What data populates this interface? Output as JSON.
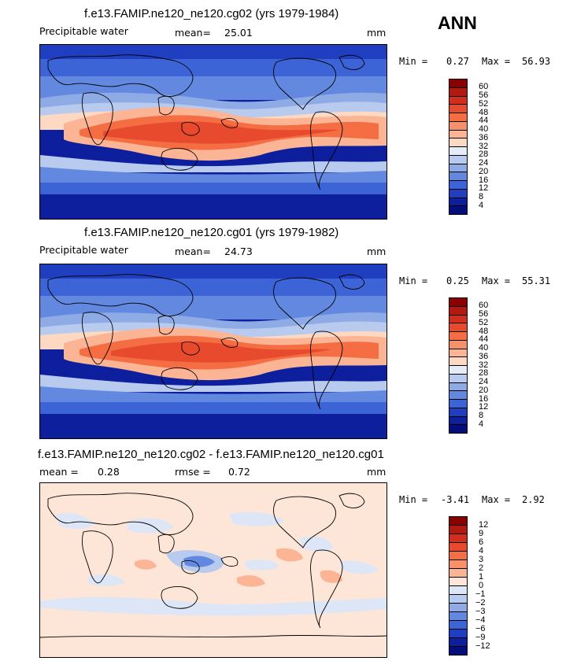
{
  "season": "ANN",
  "panels": [
    {
      "title": "f.e13.FAMIP.ne120_ne120.cg02 (yrs 1979-1984)",
      "variable": "Precipitable water",
      "mean_label": "mean=",
      "mean_value": "25.01",
      "units": "mm",
      "min_label": "Min =",
      "min_value": "0.27",
      "max_label": "Max =",
      "max_value": "56.93",
      "kind": "abs"
    },
    {
      "title": "f.e13.FAMIP.ne120_ne120.cg01 (yrs 1979-1982)",
      "variable": "Precipitable water",
      "mean_label": "mean=",
      "mean_value": "24.73",
      "units": "mm",
      "min_label": "Min =",
      "min_value": "0.25",
      "max_label": "Max =",
      "max_value": "55.31",
      "kind": "abs"
    },
    {
      "title": "f.e13.FAMIP.ne120_ne120.cg02 - f.e13.FAMIP.ne120_ne120.cg01",
      "mean_label": "mean =",
      "mean_value": "0.28",
      "rmse_label": "rmse =",
      "rmse_value": "0.72",
      "units": "mm",
      "min_label": "Min =",
      "min_value": "-3.41",
      "max_label": "Max =",
      "max_value": "2.92",
      "kind": "diff"
    }
  ],
  "colorbar_abs": {
    "labels": [
      "60",
      "56",
      "52",
      "48",
      "44",
      "40",
      "36",
      "32",
      "28",
      "24",
      "20",
      "16",
      "12",
      "8",
      "4"
    ],
    "colors": [
      "#8b0000",
      "#b01a10",
      "#d32d1e",
      "#e84a2e",
      "#f46d43",
      "#f7916a",
      "#fbb595",
      "#fdd9c4",
      "#e6ecf7",
      "#b8cbee",
      "#8eabe6",
      "#6388e0",
      "#3c64d6",
      "#1f3fc0",
      "#0d1f9c",
      "#050d78"
    ]
  },
  "colorbar_diff": {
    "labels": [
      "12",
      "9",
      "6",
      "4",
      "3",
      "2",
      "1",
      "0",
      "-1",
      "-2",
      "-3",
      "-4",
      "-6",
      "-9",
      "-12"
    ],
    "colors": [
      "#8b0000",
      "#b01a10",
      "#d32d1e",
      "#e84a2e",
      "#f46d43",
      "#f7916a",
      "#fbb595",
      "#fde6d8",
      "#dde6f6",
      "#b8cbee",
      "#8eabe6",
      "#6388e0",
      "#3c64d6",
      "#1f3fc0",
      "#0d1f9c",
      "#050d78"
    ]
  }
}
